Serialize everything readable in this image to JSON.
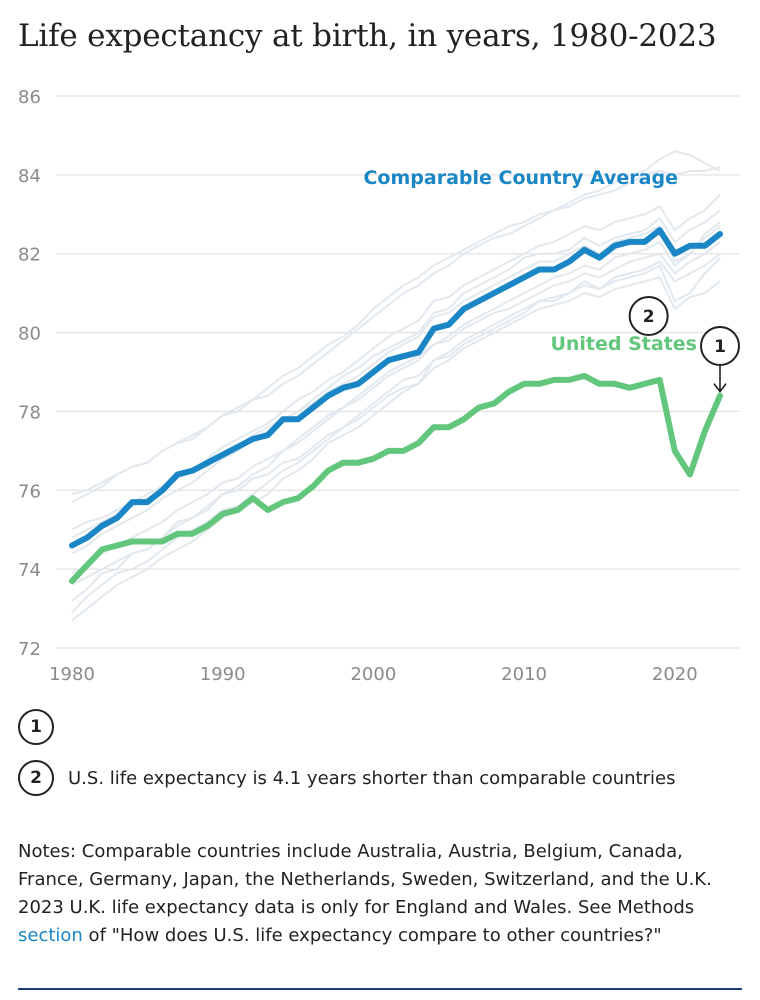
{
  "title": "Life expectancy at birth, in years, 1980-2023",
  "colors": {
    "comparable": "#1a86c6",
    "us": "#62c77d",
    "background_lines": "#e1e8ee",
    "grid": "#e3e3e3",
    "axis_text": "#8a8a8a",
    "link": "#1a86c6"
  },
  "chart_data": {
    "type": "line",
    "title": "Life expectancy at birth, in years, 1980-2023",
    "xlabel": "",
    "ylabel": "",
    "xlim": [
      1980,
      2023
    ],
    "ylim": [
      72,
      86
    ],
    "x_ticks": [
      1980,
      1990,
      2000,
      2010,
      2020
    ],
    "y_ticks": [
      72,
      74,
      76,
      78,
      80,
      82,
      84,
      86
    ],
    "x": [
      1980,
      1981,
      1982,
      1983,
      1984,
      1985,
      1986,
      1987,
      1988,
      1989,
      1990,
      1991,
      1992,
      1993,
      1994,
      1995,
      1996,
      1997,
      1998,
      1999,
      2000,
      2001,
      2002,
      2003,
      2004,
      2005,
      2006,
      2007,
      2008,
      2009,
      2010,
      2011,
      2012,
      2013,
      2014,
      2015,
      2016,
      2017,
      2018,
      2019,
      2020,
      2021,
      2022,
      2023
    ],
    "series": [
      {
        "name": "Comparable Country Average",
        "label": "Comparable Country Average",
        "values": [
          74.6,
          74.8,
          75.1,
          75.3,
          75.7,
          75.7,
          76.0,
          76.4,
          76.5,
          76.7,
          76.9,
          77.1,
          77.3,
          77.4,
          77.8,
          77.8,
          78.1,
          78.4,
          78.6,
          78.7,
          79.0,
          79.3,
          79.4,
          79.5,
          80.1,
          80.2,
          80.6,
          80.8,
          81.0,
          81.2,
          81.4,
          81.6,
          81.6,
          81.8,
          82.1,
          81.9,
          82.2,
          82.3,
          82.3,
          82.6,
          82.0,
          82.2,
          82.2,
          82.5
        ]
      },
      {
        "name": "United States",
        "label": "United States",
        "values": [
          73.7,
          74.1,
          74.5,
          74.6,
          74.7,
          74.7,
          74.7,
          74.9,
          74.9,
          75.1,
          75.4,
          75.5,
          75.8,
          75.5,
          75.7,
          75.8,
          76.1,
          76.5,
          76.7,
          76.7,
          76.8,
          77.0,
          77.0,
          77.2,
          77.6,
          77.6,
          77.8,
          78.1,
          78.2,
          78.5,
          78.7,
          78.7,
          78.8,
          78.8,
          78.9,
          78.7,
          78.7,
          78.6,
          78.7,
          78.8,
          77.0,
          76.4,
          77.5,
          78.4
        ]
      }
    ],
    "background_series": [
      {
        "name": "comparable-country-a",
        "values": [
          75.9,
          76.0,
          76.2,
          76.4,
          76.6,
          76.7,
          77.0,
          77.2,
          77.4,
          77.6,
          77.9,
          78.1,
          78.3,
          78.4,
          78.7,
          78.9,
          79.2,
          79.5,
          79.8,
          80.1,
          80.4,
          80.7,
          81.0,
          81.2,
          81.5,
          81.7,
          82.0,
          82.2,
          82.4,
          82.5,
          82.7,
          82.9,
          83.1,
          83.3,
          83.5,
          83.6,
          83.8,
          84.0,
          84.1,
          84.4,
          84.6,
          84.5,
          84.3,
          84.1
        ]
      },
      {
        "name": "comparable-country-b",
        "values": [
          75.7,
          75.9,
          76.1,
          76.4,
          76.6,
          76.7,
          77.0,
          77.2,
          77.3,
          77.6,
          77.9,
          78.0,
          78.3,
          78.6,
          78.9,
          79.1,
          79.4,
          79.7,
          79.9,
          80.2,
          80.6,
          80.9,
          81.2,
          81.4,
          81.7,
          81.9,
          82.1,
          82.3,
          82.5,
          82.7,
          82.8,
          83.0,
          83.1,
          83.2,
          83.4,
          83.5,
          83.6,
          83.8,
          84.0,
          84.1,
          84.0,
          84.1,
          84.1,
          84.2
        ]
      },
      {
        "name": "comparable-country-c",
        "values": [
          74.8,
          75.0,
          75.2,
          75.4,
          75.6,
          75.8,
          76.0,
          76.3,
          76.5,
          76.8,
          77.1,
          77.3,
          77.5,
          77.7,
          78.0,
          78.3,
          78.5,
          78.8,
          79.0,
          79.3,
          79.6,
          79.9,
          80.1,
          80.3,
          80.8,
          80.9,
          81.2,
          81.4,
          81.6,
          81.8,
          82.0,
          82.2,
          82.3,
          82.5,
          82.7,
          82.6,
          82.8,
          82.9,
          83.0,
          83.2,
          82.6,
          82.9,
          83.1,
          83.5
        ]
      },
      {
        "name": "comparable-country-d",
        "values": [
          74.4,
          74.6,
          74.9,
          75.1,
          75.3,
          75.5,
          75.8,
          76.0,
          76.2,
          76.5,
          76.8,
          77.0,
          77.3,
          77.5,
          77.8,
          78.0,
          78.2,
          78.5,
          78.7,
          78.9,
          79.2,
          79.5,
          79.7,
          79.9,
          80.4,
          80.5,
          80.8,
          81.0,
          81.2,
          81.4,
          81.6,
          81.8,
          81.8,
          82.0,
          82.2,
          82.0,
          82.3,
          82.4,
          82.5,
          82.7,
          81.8,
          82.0,
          82.4,
          82.7
        ]
      },
      {
        "name": "comparable-country-e",
        "values": [
          75.0,
          75.2,
          75.3,
          75.5,
          75.7,
          75.9,
          76.1,
          76.3,
          76.5,
          76.6,
          76.9,
          77.1,
          77.4,
          77.6,
          77.8,
          78.0,
          78.3,
          78.6,
          78.9,
          79.1,
          79.4,
          79.6,
          79.8,
          80.0,
          80.5,
          80.6,
          81.0,
          81.2,
          81.4,
          81.6,
          81.9,
          82.0,
          82.0,
          82.1,
          82.4,
          82.2,
          82.4,
          82.5,
          82.6,
          82.9,
          82.3,
          82.6,
          82.8,
          83.1
        ]
      },
      {
        "name": "comparable-country-f",
        "values": [
          73.2,
          73.5,
          73.9,
          74.0,
          74.4,
          74.5,
          74.8,
          75.2,
          75.3,
          75.6,
          75.9,
          76.0,
          76.3,
          76.4,
          76.7,
          76.8,
          77.1,
          77.4,
          77.6,
          77.8,
          78.1,
          78.4,
          78.6,
          78.7,
          79.3,
          79.4,
          79.7,
          79.9,
          80.1,
          80.3,
          80.5,
          80.8,
          80.8,
          81.0,
          81.3,
          81.1,
          81.4,
          81.5,
          81.6,
          81.8,
          81.3,
          81.5,
          81.7,
          82.0
        ]
      },
      {
        "name": "comparable-country-g",
        "values": [
          73.6,
          73.8,
          74.0,
          74.2,
          74.4,
          74.5,
          74.8,
          75.1,
          75.3,
          75.5,
          75.9,
          76.1,
          76.4,
          76.6,
          77.0,
          77.2,
          77.5,
          77.8,
          78.1,
          78.4,
          78.7,
          79.0,
          79.2,
          79.4,
          79.7,
          79.9,
          80.2,
          80.4,
          80.6,
          80.8,
          81.0,
          81.2,
          81.4,
          81.5,
          81.7,
          81.6,
          81.9,
          82.0,
          82.1,
          82.3,
          81.7,
          82.0,
          82.5,
          82.8
        ]
      },
      {
        "name": "comparable-country-h",
        "values": [
          72.9,
          73.3,
          73.6,
          73.9,
          74.0,
          74.2,
          74.5,
          74.8,
          75.0,
          75.2,
          75.5,
          75.6,
          75.9,
          76.2,
          76.5,
          76.7,
          77.0,
          77.3,
          77.6,
          77.9,
          78.2,
          78.5,
          78.8,
          78.9,
          79.3,
          79.5,
          79.8,
          80.0,
          80.2,
          80.4,
          80.6,
          80.8,
          80.9,
          81.0,
          81.2,
          81.1,
          81.3,
          81.4,
          81.5,
          81.7,
          80.8,
          81.0,
          81.5,
          81.9
        ]
      },
      {
        "name": "comparable-country-i",
        "values": [
          72.7,
          73.0,
          73.3,
          73.6,
          73.8,
          74.0,
          74.3,
          74.5,
          74.7,
          75.0,
          75.3,
          75.5,
          75.7,
          75.9,
          76.3,
          76.5,
          76.8,
          77.2,
          77.4,
          77.6,
          77.9,
          78.2,
          78.5,
          78.7,
          79.1,
          79.3,
          79.6,
          79.8,
          80.0,
          80.2,
          80.4,
          80.6,
          80.7,
          80.8,
          81.0,
          80.9,
          81.1,
          81.2,
          81.3,
          81.4,
          80.6,
          80.9,
          81.0,
          81.3
        ]
      },
      {
        "name": "comparable-country-j",
        "values": [
          73.9,
          74.1,
          74.4,
          74.6,
          74.8,
          75.0,
          75.2,
          75.5,
          75.7,
          75.9,
          76.2,
          76.3,
          76.6,
          76.8,
          77.0,
          77.3,
          77.6,
          77.9,
          78.1,
          78.3,
          78.6,
          78.9,
          79.1,
          79.3,
          79.7,
          79.8,
          80.1,
          80.3,
          80.5,
          80.6,
          80.8,
          81.0,
          81.2,
          81.3,
          81.5,
          81.4,
          81.6,
          81.8,
          81.9,
          82.0,
          81.5,
          81.8,
          82.0,
          82.3
        ]
      }
    ],
    "markers": [
      {
        "id": "1",
        "x": 2023,
        "y": 78.4
      },
      {
        "id": "2",
        "x": 2018,
        "y": 79.6
      }
    ]
  },
  "annotations": [
    {
      "number": "1",
      "text": ""
    },
    {
      "number": "2",
      "text": "U.S. life expectancy is 4.1 years shorter than comparable countries"
    }
  ],
  "notes": {
    "before_link": "Notes: Comparable countries include Australia, Austria, Belgium, Canada, France, Germany, Japan, the Netherlands, Sweden, Switzerland, and the U.K. 2023 U.K. life expectancy data is only for England and Wales. See Methods ",
    "link_text": "section",
    "after_link": " of \"How does U.S. life expectancy compare to other countries?\""
  }
}
